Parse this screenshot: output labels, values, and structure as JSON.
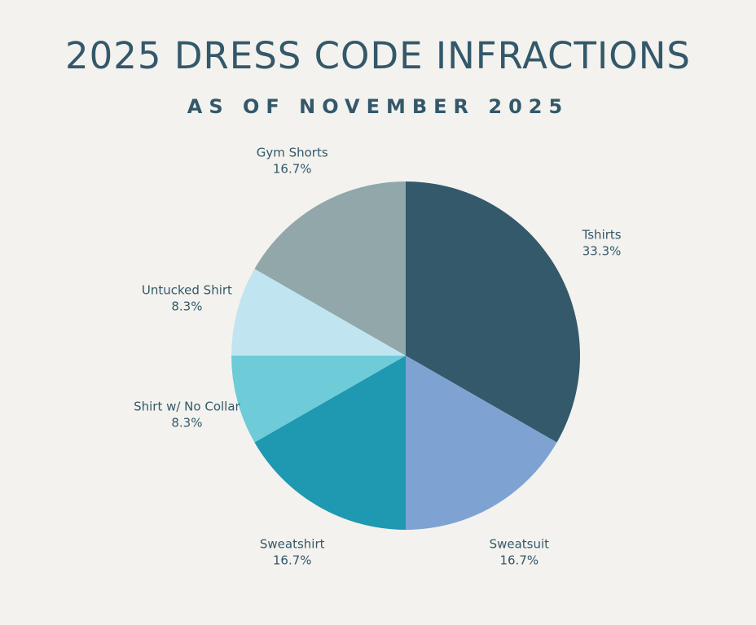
{
  "chart_data": {
    "type": "pie",
    "title": "2025 DRESS CODE INFRACTIONS",
    "subtitle": "AS OF NOVEMBER 2025",
    "slices": [
      {
        "label": "Tshirts",
        "value": 33.3,
        "value_label": "33.3%",
        "color": "#34596b"
      },
      {
        "label": "Sweatsuit",
        "value": 16.7,
        "value_label": "16.7%",
        "color": "#7ea3d3"
      },
      {
        "label": "Sweatshirt",
        "value": 16.7,
        "value_label": "16.7%",
        "color": "#1f98b2"
      },
      {
        "label": "Shirt w/ No Collar",
        "value": 8.3,
        "value_label": "8.3%",
        "color": "#6ecbd8"
      },
      {
        "label": "Untucked Shirt",
        "value": 8.3,
        "value_label": "8.3%",
        "color": "#c1e5f0"
      },
      {
        "label": "Gym Shorts",
        "value": 16.7,
        "value_label": "16.7%",
        "color": "#91a7a9"
      }
    ],
    "start_angle": "12 o'clock",
    "direction": "clockwise",
    "legend": "none",
    "labels_position": "outside"
  }
}
